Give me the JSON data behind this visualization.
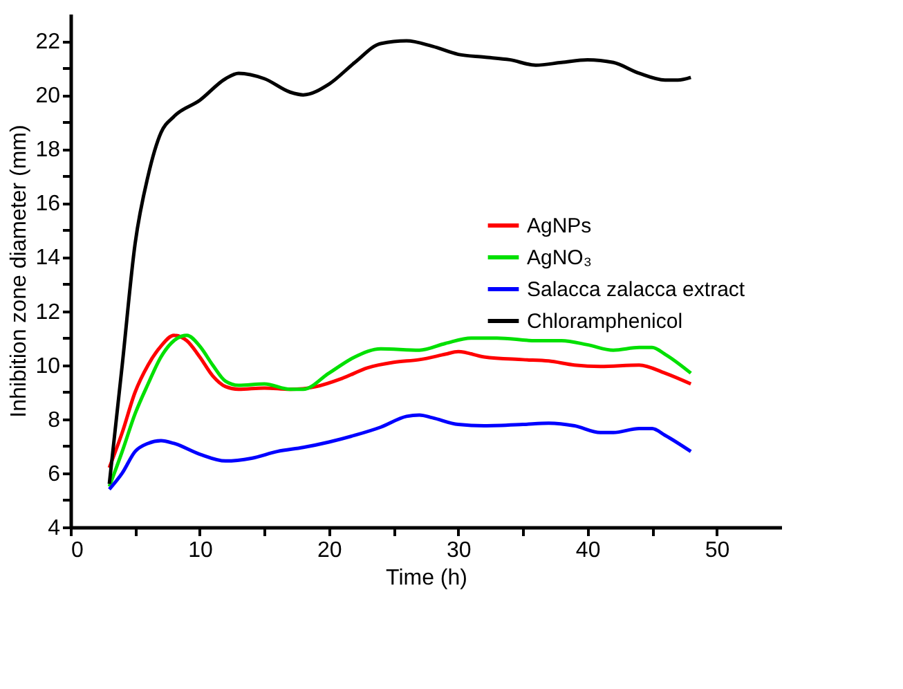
{
  "chart_data": {
    "type": "line",
    "xlabel": "Time (h)",
    "ylabel": "Inhibition zone diameter (mm)",
    "xlim": [
      0,
      55
    ],
    "ylim": [
      4,
      23
    ],
    "xticks": [
      0,
      {
        "value": 5,
        "label": null
      },
      10,
      {
        "value": 15,
        "label": null
      },
      20,
      {
        "value": 25,
        "label": null
      },
      30,
      {
        "value": 35,
        "label": null
      },
      40,
      {
        "value": 45,
        "label": null
      },
      50
    ],
    "yticks": [
      4,
      {
        "value": 5,
        "label": null
      },
      6,
      {
        "value": 7,
        "label": null
      },
      8,
      {
        "value": 9,
        "label": null
      },
      10,
      {
        "value": 11,
        "label": null
      },
      12,
      {
        "value": 13,
        "label": null
      },
      14,
      {
        "value": 15,
        "label": null
      },
      16,
      {
        "value": 17,
        "label": null
      },
      18,
      {
        "value": 19,
        "label": null
      },
      20,
      {
        "value": 21,
        "label": null
      },
      22
    ],
    "grid": false,
    "legend": "right",
    "marker": "none",
    "line_style": "solid",
    "series": [
      {
        "name": "AgNPs",
        "color": "#ff0000",
        "x": [
          3,
          4,
          5,
          6,
          7,
          8,
          9,
          10,
          11,
          12,
          13,
          15,
          17,
          19,
          21,
          23,
          25,
          27,
          29,
          30,
          32,
          35,
          37,
          39,
          41,
          44,
          46,
          48
        ],
        "values": [
          6.2,
          7.5,
          9,
          10,
          10.7,
          11.1,
          10.9,
          10.3,
          9.6,
          9.2,
          9.1,
          9.15,
          9.1,
          9.2,
          9.5,
          9.9,
          10.1,
          10.2,
          10.4,
          10.5,
          10.3,
          10.2,
          10.15,
          10.0,
          9.95,
          10.0,
          9.7,
          9.3
        ]
      },
      {
        "name": "AgNO₃",
        "color": "#00e000",
        "x": [
          3,
          4,
          5,
          6,
          7,
          8,
          9,
          10,
          11,
          12,
          13,
          15,
          17,
          18,
          20,
          22,
          24,
          27,
          29,
          31,
          33,
          36,
          38,
          40,
          42,
          44,
          45,
          46,
          48
        ],
        "values": [
          5.5,
          6.8,
          8.2,
          9.3,
          10.3,
          10.9,
          11.1,
          10.7,
          10.0,
          9.4,
          9.25,
          9.3,
          9.1,
          9.1,
          9.7,
          10.3,
          10.6,
          10.55,
          10.8,
          11.0,
          11.0,
          10.9,
          10.9,
          10.75,
          10.55,
          10.65,
          10.65,
          10.4,
          9.7
        ]
      },
      {
        "name": "Salacca zalacca extract",
        "color": "#0000ff",
        "x": [
          3,
          4,
          5,
          6,
          7,
          8,
          10,
          12,
          14,
          16,
          18,
          20,
          22,
          24,
          26,
          27,
          28,
          30,
          32,
          35,
          37,
          39,
          41,
          42,
          44,
          45,
          46,
          48
        ],
        "values": [
          5.4,
          6.0,
          6.8,
          7.1,
          7.2,
          7.1,
          6.7,
          6.45,
          6.55,
          6.8,
          6.95,
          7.15,
          7.4,
          7.7,
          8.1,
          8.15,
          8.05,
          7.8,
          7.75,
          7.8,
          7.85,
          7.75,
          7.5,
          7.5,
          7.65,
          7.65,
          7.4,
          6.8
        ]
      },
      {
        "name": "Chloramphenicol",
        "color": "#000000",
        "x": [
          3,
          4,
          5,
          6,
          7,
          8,
          10,
          12,
          13,
          15,
          17,
          18,
          20,
          22,
          24,
          26,
          28,
          30,
          32,
          34,
          36,
          38,
          40,
          42,
          44,
          46,
          47,
          48
        ],
        "values": [
          5.6,
          10,
          14.5,
          17,
          18.6,
          19.2,
          19.8,
          20.6,
          20.8,
          20.6,
          20.1,
          20.0,
          20.4,
          21.2,
          21.9,
          22.0,
          21.8,
          21.5,
          21.4,
          21.3,
          21.1,
          21.2,
          21.3,
          21.2,
          20.8,
          20.55,
          20.55,
          20.65
        ]
      }
    ]
  }
}
